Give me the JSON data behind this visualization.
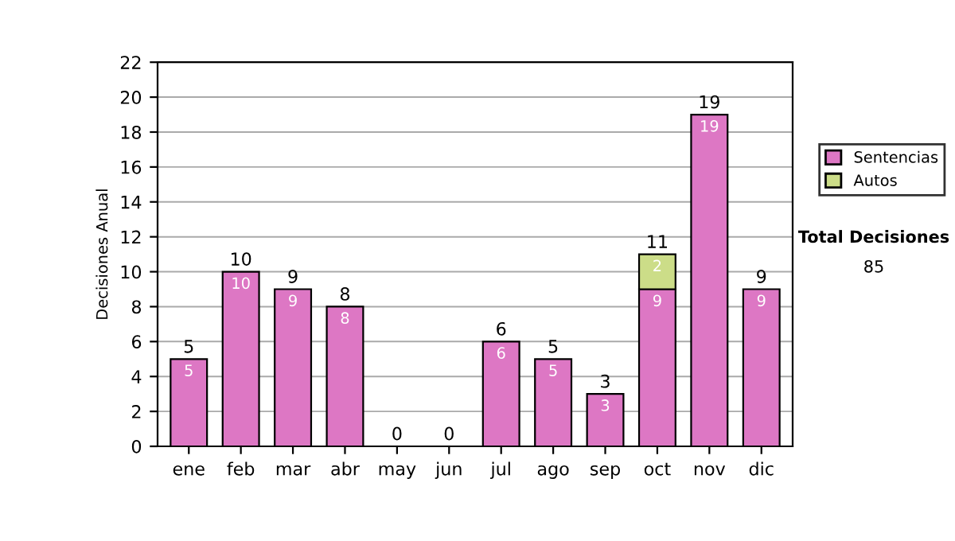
{
  "chart_data": {
    "type": "bar",
    "stacked": true,
    "ylabel": "Decisiones Anual",
    "categories": [
      "ene",
      "feb",
      "mar",
      "abr",
      "may",
      "jun",
      "jul",
      "ago",
      "sep",
      "oct",
      "nov",
      "dic"
    ],
    "series": [
      {
        "name": "Sentencias",
        "color": "#dd77c4",
        "values": [
          5,
          10,
          9,
          8,
          0,
          0,
          6,
          5,
          3,
          9,
          19,
          9
        ],
        "value_labels": [
          "5",
          "10",
          "9",
          "8",
          null,
          null,
          "6",
          "5",
          "3",
          "9",
          "19",
          "9"
        ]
      },
      {
        "name": "Autos",
        "color": "#ccdd88",
        "values": [
          null,
          null,
          null,
          null,
          null,
          null,
          null,
          null,
          null,
          2,
          null,
          null
        ],
        "value_labels": [
          null,
          null,
          null,
          null,
          null,
          null,
          null,
          null,
          null,
          "2",
          null,
          null
        ]
      }
    ],
    "totals": [
      "5",
      "10",
      "9",
      "8",
      "0",
      "0",
      "6",
      "5",
      "3",
      "11",
      "19",
      "9"
    ],
    "ylim": [
      0,
      22
    ],
    "yticks": [
      0,
      2,
      4,
      6,
      8,
      10,
      12,
      14,
      16,
      18,
      20,
      22
    ],
    "grid": "y",
    "legend": "right",
    "annotations": [
      "Total Decisiones",
      "85"
    ]
  }
}
